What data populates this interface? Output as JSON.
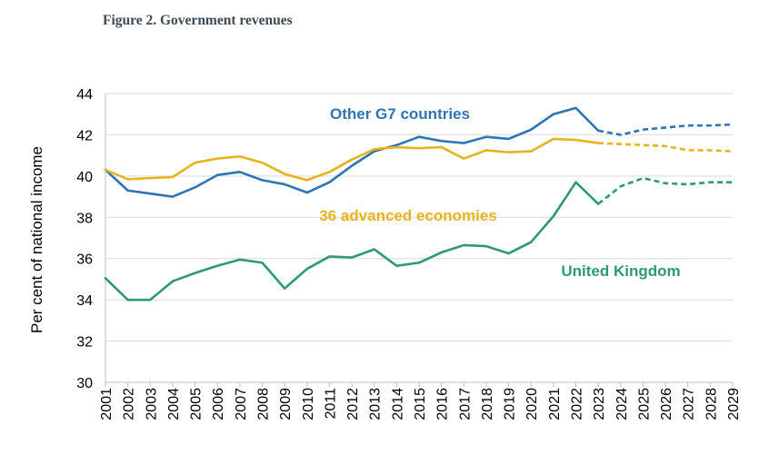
{
  "figure_title": "Figure 2. Government revenues",
  "chart_data": {
    "type": "line",
    "title": "Figure 2. Government revenues",
    "xlabel": "",
    "ylabel": "Per cent of national income",
    "ylim": [
      30,
      44
    ],
    "yticks": [
      30,
      32,
      34,
      36,
      38,
      40,
      42,
      44
    ],
    "grid": true,
    "x": [
      "2001",
      "2002",
      "2003",
      "2004",
      "2005",
      "2006",
      "2007",
      "2008",
      "2009",
      "2010",
      "2011",
      "2012",
      "2013",
      "2014",
      "2015",
      "2016",
      "2017",
      "2018",
      "2019",
      "2020",
      "2021",
      "2022",
      "2023",
      "2024",
      "2025",
      "2026",
      "2027",
      "2028",
      "2029"
    ],
    "projection_start_year": "2023",
    "series": [
      {
        "name": "Other G7 countries",
        "color": "#2e75b6",
        "values": [
          40.3,
          39.3,
          39.15,
          39.0,
          39.45,
          40.05,
          40.2,
          39.8,
          39.6,
          39.2,
          39.7,
          40.5,
          41.2,
          41.5,
          41.9,
          41.7,
          41.6,
          41.9,
          41.8,
          42.25,
          43.0,
          43.3,
          42.2,
          42.0,
          42.25,
          42.35,
          42.45,
          42.45,
          42.5
        ]
      },
      {
        "name": "36 advanced economies",
        "color": "#e8b21e",
        "values": [
          40.3,
          39.85,
          39.9,
          39.95,
          40.65,
          40.85,
          40.95,
          40.65,
          40.1,
          39.8,
          40.2,
          40.8,
          41.3,
          41.4,
          41.35,
          41.4,
          40.85,
          41.25,
          41.15,
          41.2,
          41.8,
          41.75,
          41.6,
          41.55,
          41.5,
          41.45,
          41.25,
          41.25,
          41.2
        ]
      },
      {
        "name": "United Kingdom",
        "color": "#2e9a72",
        "values": [
          35.05,
          34.0,
          34.0,
          34.9,
          35.3,
          35.65,
          35.95,
          35.8,
          34.55,
          35.5,
          36.1,
          36.05,
          36.45,
          35.65,
          35.8,
          36.3,
          36.65,
          36.6,
          36.25,
          36.8,
          38.05,
          39.7,
          38.65,
          39.5,
          39.9,
          39.65,
          39.6,
          39.7,
          39.7
        ]
      }
    ]
  }
}
